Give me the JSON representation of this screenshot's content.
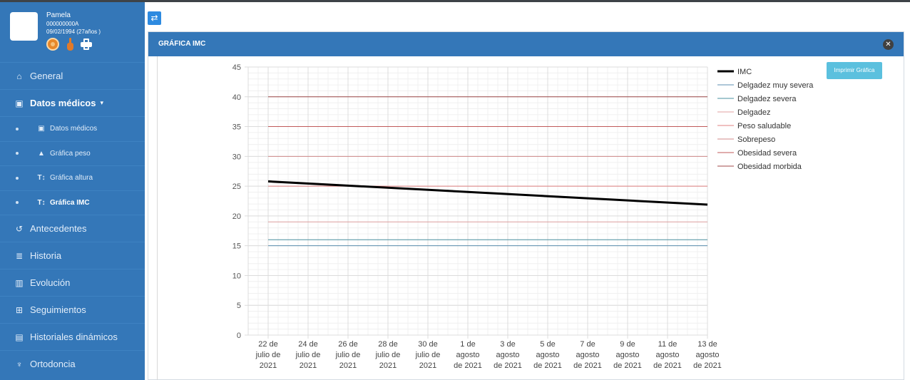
{
  "patient": {
    "name": "Pamela",
    "id": "000000000A",
    "dob": "09/02/1994 (27años )"
  },
  "icons": {
    "face": "baby-face-icon",
    "hand": "hand-icon",
    "print": "printer-icon",
    "toggle": "swap-arrows-icon",
    "close": "close-icon"
  },
  "menu": {
    "general": "General",
    "datos_medicos": "Datos médicos",
    "sub": {
      "datos_medicos": "Datos médicos",
      "grafica_peso": "Gráfica peso",
      "grafica_altura": "Gráfica altura",
      "grafica_imc": "Gráfica IMC"
    },
    "antecedentes": "Antecedentes",
    "historia": "Historia",
    "evolucion": "Evolución",
    "seguimientos": "Seguimientos",
    "historiales": "Historiales dinámicos",
    "ortodoncia": "Ortodoncia"
  },
  "panel": {
    "title": "GRÁFICA IMC",
    "print_label": "Imprimir Gráfica"
  },
  "colors": {
    "sidebar": "#3477b8",
    "accent": "#2d8ae0",
    "print_button": "#5bc0de"
  },
  "chart_data": {
    "type": "line",
    "title": "",
    "xlabel": "",
    "ylabel": "",
    "ylim": [
      0,
      45
    ],
    "yticks": [
      0,
      5,
      10,
      15,
      20,
      25,
      30,
      35,
      40,
      45
    ],
    "x_categories": [
      [
        "22 de",
        "julio de",
        "2021"
      ],
      [
        "24 de",
        "julio de",
        "2021"
      ],
      [
        "26 de",
        "julio de",
        "2021"
      ],
      [
        "28 de",
        "julio de",
        "2021"
      ],
      [
        "30 de",
        "julio de",
        "2021"
      ],
      [
        "1 de",
        "agosto",
        "de 2021"
      ],
      [
        "3 de",
        "agosto",
        "de 2021"
      ],
      [
        "5 de",
        "agosto",
        "de 2021"
      ],
      [
        "7 de",
        "agosto",
        "de 2021"
      ],
      [
        "9 de",
        "agosto",
        "de 2021"
      ],
      [
        "11 de",
        "agosto",
        "de 2021"
      ],
      [
        "13 de",
        "agosto",
        "de 2021"
      ]
    ],
    "grid": true,
    "legend": "right",
    "series": [
      {
        "name": "IMC",
        "color": "#000000",
        "width": 3,
        "points": [
          [
            0,
            25.8
          ],
          [
            11,
            21.9
          ]
        ]
      },
      {
        "name": "Delgadez muy severa",
        "color": "#5b8fb0",
        "width": 1,
        "points": [
          [
            0,
            15
          ],
          [
            11,
            15
          ]
        ]
      },
      {
        "name": "Delgadez severa",
        "color": "#4a90a0",
        "width": 1,
        "points": [
          [
            0,
            16
          ],
          [
            11,
            16
          ]
        ]
      },
      {
        "name": "Delgadez",
        "color": "#e0a0a0",
        "width": 1,
        "points": [
          [
            0,
            19
          ],
          [
            11,
            19
          ]
        ]
      },
      {
        "name": "Peso saludable",
        "color": "#e08080",
        "width": 1,
        "points": [
          [
            0,
            25
          ],
          [
            11,
            25
          ]
        ]
      },
      {
        "name": "Sobrepeso",
        "color": "#d08a8a",
        "width": 1,
        "points": [
          [
            0,
            30
          ],
          [
            11,
            30
          ]
        ]
      },
      {
        "name": "Obesidad severa",
        "color": "#c05a5a",
        "width": 1,
        "points": [
          [
            0,
            35
          ],
          [
            11,
            35
          ]
        ]
      },
      {
        "name": "Obesidad morbida",
        "color": "#a04a4a",
        "width": 1,
        "points": [
          [
            0,
            40
          ],
          [
            11,
            40
          ]
        ]
      }
    ]
  }
}
